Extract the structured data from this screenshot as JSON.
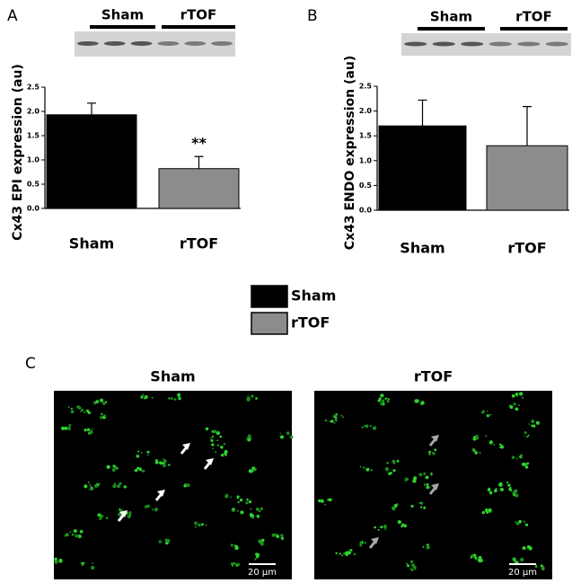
{
  "chart_data": [
    {
      "type": "bar",
      "panel_label": "A",
      "blot_labels": [
        "Sham",
        "rTOF"
      ],
      "ylabel": "Cx43 EPI expression (au)",
      "categories": [
        "Sham",
        "rTOF"
      ],
      "values": [
        1.93,
        0.82
      ],
      "errors": [
        0.24,
        0.25
      ],
      "colors": [
        "#000000",
        "#8c8c8c"
      ],
      "significance": [
        null,
        "**"
      ],
      "ylim": [
        0,
        2.5
      ],
      "yticks": [
        {
          "value": 0,
          "label": "0.0"
        },
        {
          "value": 0.5,
          "label": "0.5"
        },
        {
          "value": 1,
          "label": "1.0"
        },
        {
          "value": 1.5,
          "label": "1.5"
        },
        {
          "value": 2,
          "label": "2.0"
        },
        {
          "value": 2.5,
          "label": "2.5"
        }
      ]
    },
    {
      "type": "bar",
      "panel_label": "B",
      "blot_labels": [
        "Sham",
        "rTOF"
      ],
      "ylabel": "Cx43 ENDO expression (au)",
      "categories": [
        "Sham",
        "rTOF"
      ],
      "values": [
        1.7,
        1.3
      ],
      "errors": [
        0.52,
        0.79
      ],
      "colors": [
        "#000000",
        "#8c8c8c"
      ],
      "significance": [
        null,
        null
      ],
      "ylim": [
        0,
        2.5
      ],
      "yticks": [
        {
          "value": 0,
          "label": "0.0"
        },
        {
          "value": 0.5,
          "label": "0.5"
        },
        {
          "value": 1,
          "label": "1.0"
        },
        {
          "value": 1.5,
          "label": "1.5"
        },
        {
          "value": 2,
          "label": "2.0"
        },
        {
          "value": 2.5,
          "label": "2.5"
        }
      ]
    }
  ],
  "legend": [
    {
      "name": "Sham",
      "color": "#000000"
    },
    {
      "name": "rTOF",
      "color": "#8c8c8c"
    }
  ],
  "panel_c": {
    "label": "C",
    "images": [
      {
        "title": "Sham",
        "scale_bar": "20 μm",
        "arrow_color": "#ffffff"
      },
      {
        "title": "rTOF",
        "scale_bar": "20 μm",
        "arrow_color": "#a8a8a8"
      }
    ]
  }
}
